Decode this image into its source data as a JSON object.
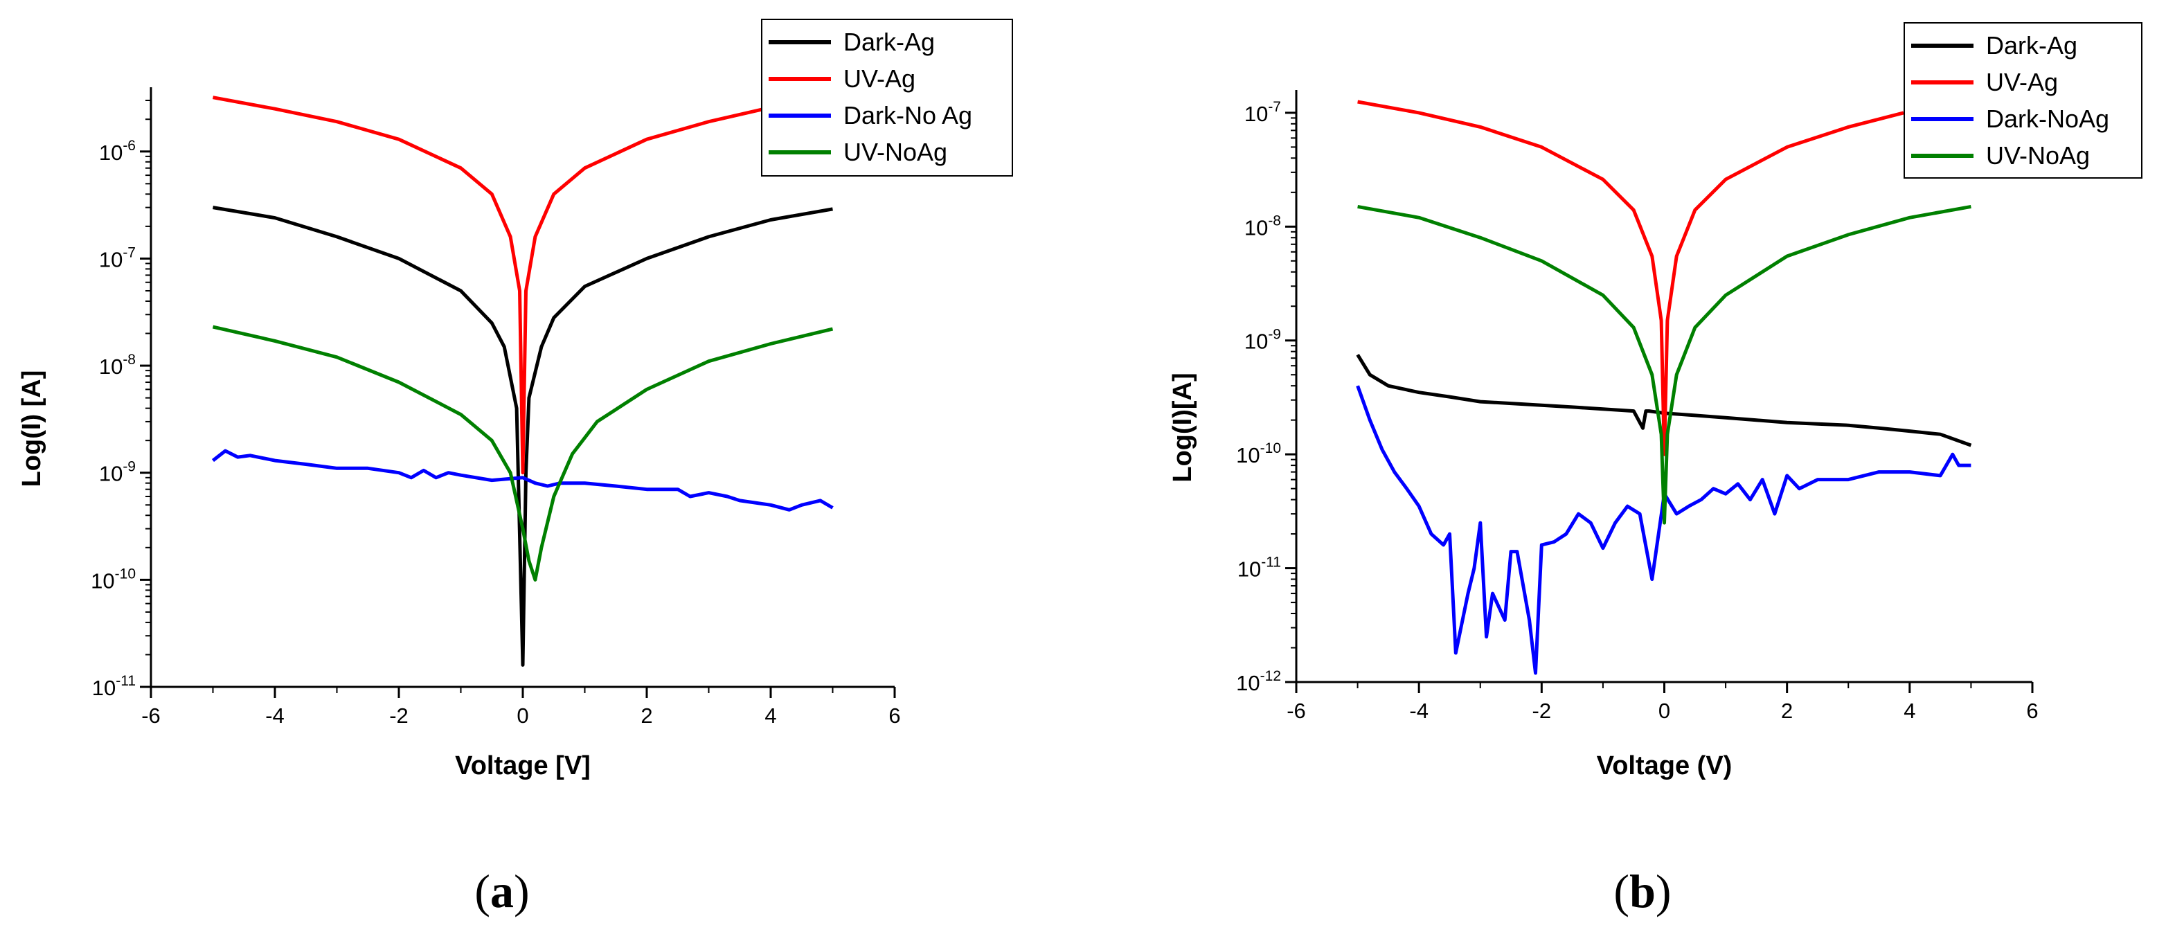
{
  "chart_data": [
    {
      "type": "line",
      "panel_label": "(a)",
      "panel_letter": "a",
      "xlabel": "Voltage [V]",
      "ylabel": "Log(I) [A]",
      "xlim": [
        -6,
        6
      ],
      "y_log_range": [
        -11,
        -5.4
      ],
      "x_ticks": [
        -6,
        -4,
        -2,
        0,
        2,
        4,
        6
      ],
      "y_tick_exponents": [
        -11,
        -10,
        -9,
        -8,
        -7,
        -6
      ],
      "y_tick_base": "10",
      "legend_position": "top-right",
      "series": [
        {
          "name": "Dark-Ag",
          "color": "#000000",
          "x": [
            -5,
            -4,
            -3,
            -2,
            -1,
            -0.5,
            -0.3,
            -0.1,
            0,
            0.05,
            0.1,
            0.3,
            0.5,
            1,
            2,
            3,
            4,
            5
          ],
          "y": [
            3e-07,
            2.4e-07,
            1.6e-07,
            1e-07,
            5e-08,
            2.5e-08,
            1.5e-08,
            4e-09,
            1.6e-11,
            1e-09,
            5e-09,
            1.5e-08,
            2.8e-08,
            5.5e-08,
            1e-07,
            1.6e-07,
            2.3e-07,
            2.9e-07
          ]
        },
        {
          "name": "UV-Ag",
          "color": "#ff0000",
          "x": [
            -5,
            -4,
            -3,
            -2,
            -1,
            -0.5,
            -0.2,
            -0.05,
            0,
            0.05,
            0.2,
            0.5,
            1,
            2,
            3,
            3.9
          ],
          "y": [
            3.2e-06,
            2.5e-06,
            1.9e-06,
            1.3e-06,
            7e-07,
            4e-07,
            1.6e-07,
            5e-08,
            1e-09,
            5e-08,
            1.6e-07,
            4e-07,
            7e-07,
            1.3e-06,
            1.9e-06,
            2.5e-06
          ]
        },
        {
          "name": "Dark-No Ag",
          "color": "#0000ff",
          "x": [
            -5,
            -4.8,
            -4.6,
            -4.4,
            -4,
            -3.5,
            -3,
            -2.5,
            -2,
            -1.8,
            -1.6,
            -1.4,
            -1.2,
            -1,
            -0.5,
            0,
            0.2,
            0.4,
            0.6,
            1,
            1.5,
            2,
            2.5,
            2.7,
            3,
            3.3,
            3.5,
            4,
            4.3,
            4.5,
            4.8,
            5
          ],
          "y": [
            1.3e-09,
            1.6e-09,
            1.4e-09,
            1.45e-09,
            1.3e-09,
            1.2e-09,
            1.1e-09,
            1.1e-09,
            1e-09,
            9e-10,
            1.05e-09,
            9e-10,
            1e-09,
            9.5e-10,
            8.5e-10,
            9e-10,
            8e-10,
            7.5e-10,
            8e-10,
            8e-10,
            7.5e-10,
            7e-10,
            7e-10,
            6e-10,
            6.5e-10,
            6e-10,
            5.5e-10,
            5e-10,
            4.5e-10,
            5e-10,
            5.5e-10,
            4.7e-10
          ]
        },
        {
          "name": "UV-NoAg",
          "color": "#008000",
          "x": [
            -5,
            -4,
            -3,
            -2,
            -1,
            -0.5,
            -0.2,
            0,
            0.1,
            0.2,
            0.3,
            0.5,
            0.8,
            1.2,
            2,
            3,
            4,
            5
          ],
          "y": [
            2.3e-08,
            1.7e-08,
            1.2e-08,
            7e-09,
            3.5e-09,
            2e-09,
            1e-09,
            3e-10,
            1.5e-10,
            1e-10,
            2e-10,
            6e-10,
            1.5e-09,
            3e-09,
            6e-09,
            1.1e-08,
            1.6e-08,
            2.2e-08
          ]
        }
      ]
    },
    {
      "type": "line",
      "panel_label": "(b)",
      "panel_letter": "b",
      "xlabel": "Voltage (V)",
      "ylabel": "Log(I)[A]",
      "xlim": [
        -6,
        6
      ],
      "y_log_range": [
        -12,
        -6.8
      ],
      "x_ticks": [
        -6,
        -4,
        -2,
        0,
        2,
        4,
        6
      ],
      "y_tick_exponents": [
        -12,
        -11,
        -10,
        -9,
        -8,
        -7
      ],
      "y_tick_base": "10",
      "legend_position": "top-right",
      "series": [
        {
          "name": "Dark-Ag",
          "color": "#000000",
          "x": [
            -5,
            -4.8,
            -4.5,
            -4,
            -3.5,
            -3,
            -2.5,
            -2,
            -1.5,
            -1,
            -0.5,
            -0.35,
            -0.3,
            -0.25,
            0,
            0.5,
            1,
            1.5,
            2,
            2.5,
            3,
            3.5,
            4,
            4.5,
            5
          ],
          "y": [
            7.5e-10,
            5e-10,
            4e-10,
            3.5e-10,
            3.2e-10,
            2.9e-10,
            2.8e-10,
            2.7e-10,
            2.6e-10,
            2.5e-10,
            2.4e-10,
            1.7e-10,
            2.4e-10,
            2.4e-10,
            2.3e-10,
            2.2e-10,
            2.1e-10,
            2e-10,
            1.9e-10,
            1.85e-10,
            1.8e-10,
            1.7e-10,
            1.6e-10,
            1.5e-10,
            1.2e-10
          ]
        },
        {
          "name": "UV-Ag",
          "color": "#ff0000",
          "x": [
            -5,
            -4,
            -3,
            -2,
            -1,
            -0.5,
            -0.2,
            -0.05,
            0,
            0.05,
            0.2,
            0.5,
            1,
            2,
            3,
            3.9
          ],
          "y": [
            1.25e-07,
            1e-07,
            7.5e-08,
            5e-08,
            2.6e-08,
            1.4e-08,
            5.5e-09,
            1.5e-09,
            1e-10,
            1.5e-09,
            5.5e-09,
            1.4e-08,
            2.6e-08,
            5e-08,
            7.5e-08,
            1e-07
          ]
        },
        {
          "name": "Dark-NoAg",
          "color": "#0000ff",
          "x": [
            -5,
            -4.8,
            -4.6,
            -4.4,
            -4.2,
            -4,
            -3.8,
            -3.6,
            -3.5,
            -3.4,
            -3.2,
            -3.1,
            -3,
            -2.9,
            -2.8,
            -2.6,
            -2.5,
            -2.4,
            -2.2,
            -2.1,
            -2,
            -1.8,
            -1.6,
            -1.4,
            -1.2,
            -1,
            -0.8,
            -0.6,
            -0.4,
            -0.2,
            0,
            0.2,
            0.4,
            0.6,
            0.8,
            1,
            1.2,
            1.4,
            1.6,
            1.8,
            2,
            2.2,
            2.5,
            3,
            3.5,
            4,
            4.5,
            4.7,
            4.8,
            5
          ],
          "y": [
            4e-10,
            2e-10,
            1.1e-10,
            7e-11,
            5e-11,
            3.5e-11,
            2e-11,
            1.6e-11,
            2e-11,
            1.8e-12,
            6e-12,
            1e-11,
            2.5e-11,
            2.5e-12,
            6e-12,
            3.5e-12,
            1.4e-11,
            1.4e-11,
            3.5e-12,
            1.2e-12,
            1.6e-11,
            1.7e-11,
            2e-11,
            3e-11,
            2.5e-11,
            1.5e-11,
            2.5e-11,
            3.5e-11,
            3e-11,
            8e-12,
            4.5e-11,
            3e-11,
            3.5e-11,
            4e-11,
            5e-11,
            4.5e-11,
            5.5e-11,
            4e-11,
            6e-11,
            3e-11,
            6.5e-11,
            5e-11,
            6e-11,
            6e-11,
            7e-11,
            7e-11,
            6.5e-11,
            1e-10,
            8e-11,
            8e-11
          ]
        },
        {
          "name": "UV-NoAg",
          "color": "#008000",
          "x": [
            -5,
            -4,
            -3,
            -2,
            -1,
            -0.5,
            -0.2,
            -0.05,
            0,
            0.05,
            0.2,
            0.5,
            1,
            2,
            3,
            4,
            5
          ],
          "y": [
            1.5e-08,
            1.2e-08,
            8e-09,
            5e-09,
            2.5e-09,
            1.3e-09,
            5e-10,
            1.5e-10,
            2.5e-11,
            1.5e-10,
            5e-10,
            1.3e-09,
            2.5e-09,
            5.5e-09,
            8.5e-09,
            1.2e-08,
            1.5e-08
          ]
        }
      ]
    }
  ]
}
